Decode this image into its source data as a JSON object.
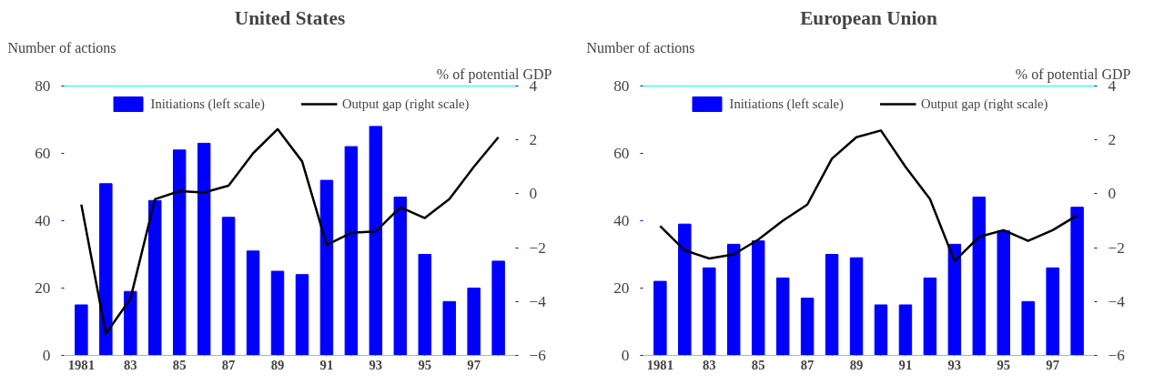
{
  "chart_data": [
    {
      "type": "bar",
      "title": "United States",
      "ylabel": "Number of actions",
      "y2label": "% of potential GDP",
      "categories": [
        "1981",
        null,
        "83",
        null,
        "85",
        null,
        "87",
        null,
        "89",
        null,
        "91",
        null,
        "93",
        null,
        "95",
        null,
        "97",
        null
      ],
      "series": [
        {
          "name": "Initiations (left scale)",
          "color": "#0000ff",
          "values": [
            15,
            51,
            19,
            46,
            61,
            63,
            41,
            31,
            25,
            24,
            52,
            62,
            68,
            47,
            30,
            16,
            20,
            28
          ]
        },
        {
          "name": "Output gap (right scale)",
          "type": "line",
          "axis": "y2",
          "color": "#000000",
          "values": [
            -0.4,
            -5.2,
            -3.9,
            -0.2,
            0.1,
            0.05,
            0.3,
            1.5,
            2.4,
            1.2,
            -1.9,
            -1.45,
            -1.4,
            -0.5,
            -0.9,
            -0.2,
            1.0,
            2.1
          ]
        }
      ],
      "ylim": [
        0,
        80
      ],
      "yticks": [
        0,
        20,
        40,
        60,
        80
      ],
      "y2lim": [
        -6,
        4
      ],
      "y2ticks": [
        -6,
        -4,
        -2,
        0,
        2,
        4
      ],
      "grid": false,
      "legend": "top"
    },
    {
      "type": "bar",
      "title": "European Union",
      "ylabel": "Number of actions",
      "y2label": "% of potential GDP",
      "categories": [
        "1981",
        null,
        "83",
        null,
        "85",
        null,
        "87",
        null,
        "89",
        null,
        "91",
        null,
        "93",
        null,
        "95",
        null,
        "97",
        null
      ],
      "series": [
        {
          "name": "Initiations (left scale)",
          "color": "#0000ff",
          "values": [
            22,
            39,
            26,
            33,
            34,
            23,
            17,
            30,
            29,
            15,
            15,
            23,
            33,
            47,
            37,
            16,
            26,
            44
          ]
        },
        {
          "name": "Output gap (right scale)",
          "type": "line",
          "axis": "y2",
          "color": "#000000",
          "values": [
            -1.2,
            -2.1,
            -2.4,
            -2.25,
            -1.7,
            -1.0,
            -0.4,
            1.3,
            2.1,
            2.35,
            1.0,
            -0.2,
            -2.5,
            -1.6,
            -1.35,
            -1.75,
            -1.35,
            -0.8
          ]
        }
      ],
      "ylim": [
        0,
        80
      ],
      "yticks": [
        0,
        20,
        40,
        60,
        80
      ],
      "y2lim": [
        -6,
        4
      ],
      "y2ticks": [
        -6,
        -4,
        -2,
        0,
        2,
        4
      ],
      "grid": false,
      "legend": "top"
    }
  ]
}
